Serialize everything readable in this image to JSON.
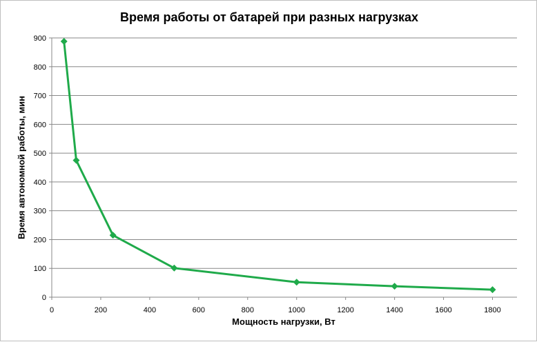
{
  "chart_data": {
    "type": "line",
    "title": "Время работы  от батарей  при разных  нагрузках",
    "xlabel": "Мощность нагрузки, Вт",
    "ylabel": "Время автономной работы, мин",
    "xlim": [
      0,
      1900
    ],
    "ylim": [
      0,
      900
    ],
    "x_ticks": [
      0,
      200,
      400,
      600,
      800,
      1000,
      1200,
      1400,
      1600,
      1800
    ],
    "y_ticks": [
      0,
      100,
      200,
      300,
      400,
      500,
      600,
      700,
      800,
      900
    ],
    "grid": "horizontal",
    "legend": "none",
    "series": [
      {
        "color": "#1faa4a",
        "marker": "diamond",
        "x": [
          50,
          100,
          250,
          500,
          1000,
          1400,
          1800
        ],
        "y": [
          888,
          475,
          215,
          101,
          52,
          38,
          26
        ]
      }
    ]
  }
}
